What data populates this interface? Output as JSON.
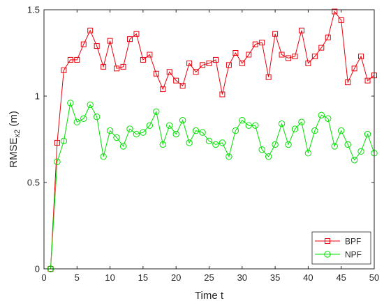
{
  "chart_data": {
    "type": "line",
    "xlabel": "Time t",
    "ylabel_main": "RMSE",
    "ylabel_sub": "x2",
    "ylabel_unit": " (m)",
    "xlim": [
      0,
      50
    ],
    "ylim": [
      0,
      1.5
    ],
    "xticks": [
      0,
      5,
      10,
      15,
      20,
      25,
      30,
      35,
      40,
      45,
      50
    ],
    "yticks": [
      0,
      0.5,
      1,
      1.5
    ],
    "ytick_labels": [
      "0",
      "0.5",
      "1",
      "1.5"
    ],
    "grid": false,
    "legend_position": "bottom-right",
    "x": [
      1,
      2,
      3,
      4,
      5,
      6,
      7,
      8,
      9,
      10,
      11,
      12,
      13,
      14,
      15,
      16,
      17,
      18,
      19,
      20,
      21,
      22,
      23,
      24,
      25,
      26,
      27,
      28,
      29,
      30,
      31,
      32,
      33,
      34,
      35,
      36,
      37,
      38,
      39,
      40,
      41,
      42,
      43,
      44,
      45,
      46,
      47,
      48,
      49,
      50
    ],
    "series": [
      {
        "name": "BPF",
        "color": "#e8000b",
        "marker": "square",
        "values": [
          0,
          0.73,
          1.15,
          1.21,
          1.21,
          1.3,
          1.38,
          1.29,
          1.17,
          1.32,
          1.16,
          1.17,
          1.33,
          1.36,
          1.21,
          1.24,
          1.13,
          1.04,
          1.14,
          1.09,
          1.06,
          1.19,
          1.14,
          1.18,
          1.19,
          1.21,
          1.01,
          1.18,
          1.25,
          1.19,
          1.24,
          1.3,
          1.31,
          1.11,
          1.36,
          1.24,
          1.22,
          1.23,
          1.38,
          1.19,
          1.23,
          1.28,
          1.34,
          1.49,
          1.44,
          1.08,
          1.16,
          1.23,
          1.09,
          1.12
        ]
      },
      {
        "name": "NPF",
        "color": "#00e000",
        "marker": "circle",
        "values": [
          0,
          0.62,
          0.74,
          0.96,
          0.85,
          0.87,
          0.95,
          0.88,
          0.65,
          0.8,
          0.76,
          0.71,
          0.81,
          0.78,
          0.79,
          0.83,
          0.91,
          0.72,
          0.83,
          0.78,
          0.86,
          0.73,
          0.8,
          0.79,
          0.74,
          0.72,
          0.73,
          0.65,
          0.8,
          0.86,
          0.83,
          0.83,
          0.69,
          0.65,
          0.72,
          0.84,
          0.72,
          0.81,
          0.85,
          0.67,
          0.8,
          0.89,
          0.87,
          0.71,
          0.8,
          0.72,
          0.63,
          0.68,
          0.78,
          0.67
        ]
      }
    ]
  }
}
